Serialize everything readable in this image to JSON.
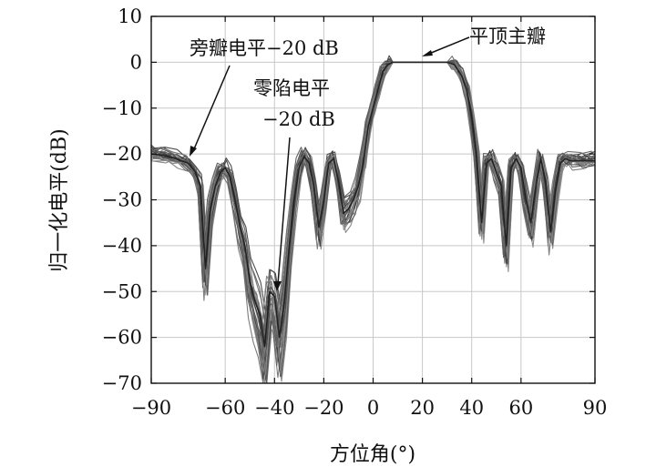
{
  "chart_data": {
    "type": "line",
    "xlabel": "方位角(°)",
    "ylabel": "归一化电平(dB)",
    "xlim": [
      -90,
      90
    ],
    "ylim": [
      -70,
      10
    ],
    "xticks": [
      -90,
      -60,
      -40,
      -20,
      0,
      20,
      40,
      60,
      90
    ],
    "xtick_labels": [
      "−90",
      "−60",
      "−40",
      "−20",
      "0",
      "20",
      "40",
      "60",
      "90"
    ],
    "yticks": [
      10,
      0,
      -10,
      -20,
      -30,
      -40,
      -50,
      -60,
      -70
    ],
    "ytick_labels": [
      "10",
      "0",
      "−10",
      "−20",
      "−30",
      "−40",
      "−50",
      "−60",
      "−70"
    ],
    "grid": true,
    "annotations": [
      {
        "text": "平顶主瓣",
        "x": 20,
        "y": 0
      },
      {
        "text": "旁瓣电平−20 dB",
        "x": -68,
        "y": -20
      },
      {
        "text": "零陷电平",
        "line2": "−20 dB",
        "x": -37,
        "y": -50
      }
    ],
    "series": [
      {
        "x": [
          -90,
          -85,
          -80,
          -75,
          -72,
          -70,
          -68,
          -66,
          -64,
          -62,
          -60,
          -58,
          -56,
          -54,
          -52,
          -50,
          -48,
          -46,
          -44,
          -42,
          -40,
          -38,
          -36,
          -34,
          -32,
          -30,
          -28,
          -26,
          -24,
          -22,
          -20,
          -18,
          -16,
          -14,
          -12,
          -10,
          -8,
          -6,
          -4,
          -2,
          0,
          2,
          4,
          6,
          8,
          10,
          15,
          20,
          25,
          30,
          33,
          36,
          38,
          40,
          42,
          44,
          46,
          48,
          50,
          52,
          54,
          56,
          58,
          60,
          62,
          64,
          66,
          68,
          70,
          72,
          74,
          76,
          78,
          80,
          85,
          90
        ],
        "values": [
          -20,
          -20.3,
          -21,
          -22,
          -24,
          -27,
          -45,
          -32,
          -27,
          -24,
          -23,
          -25,
          -30,
          -36,
          -40,
          -48,
          -52,
          -55,
          -62,
          -50,
          -51,
          -60,
          -52,
          -40,
          -30,
          -23,
          -20.5,
          -22,
          -27,
          -36,
          -30,
          -22,
          -21,
          -26,
          -33,
          -32,
          -30,
          -27,
          -22,
          -14,
          -10,
          -6,
          -2,
          -0.5,
          0,
          0,
          0,
          0,
          0,
          0,
          -0.5,
          -3,
          -6,
          -12,
          -20,
          -35,
          -22,
          -21,
          -24,
          -27,
          -40,
          -23,
          -21,
          -23,
          -30,
          -35,
          -27,
          -21,
          -26,
          -37,
          -28,
          -22,
          -21,
          -21.5,
          -21.5,
          -21.5
        ]
      }
    ]
  }
}
